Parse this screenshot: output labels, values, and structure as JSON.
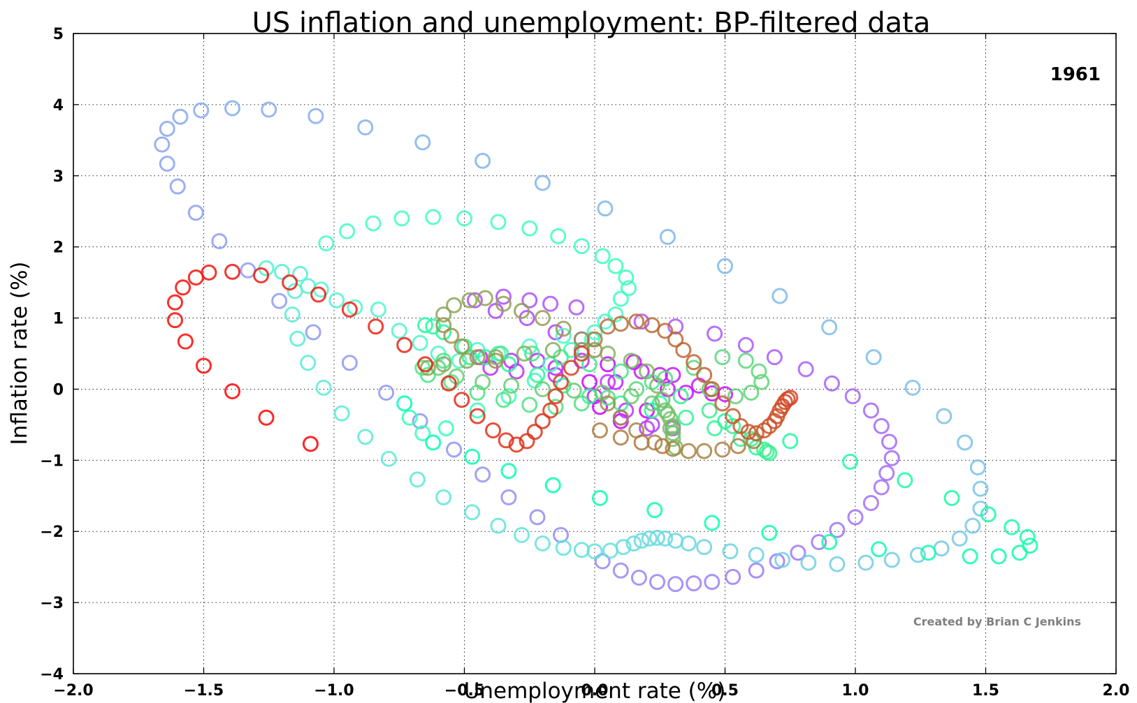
{
  "chart_data": {
    "type": "scatter",
    "title": "US inflation and unemployment: BP-filtered data",
    "xlabel": "Unemployment rate (%)",
    "ylabel": "Inflation rate (%)",
    "xlim": [
      -2.0,
      2.0
    ],
    "ylim": [
      -4,
      5
    ],
    "x_ticks": [
      -2.0,
      -1.5,
      -1.0,
      -0.5,
      0.0,
      0.5,
      1.0,
      1.5,
      2.0
    ],
    "x_tick_labels": [
      "−2.0",
      "−1.5",
      "−1.0",
      "−0.5",
      "0.0",
      "0.5",
      "1.0",
      "1.5",
      "2.0"
    ],
    "y_ticks": [
      -4,
      -3,
      -2,
      -1,
      0,
      1,
      2,
      3,
      4,
      5
    ],
    "y_tick_labels": [
      "−4",
      "−3",
      "−2",
      "−1",
      "0",
      "1",
      "2",
      "3",
      "4",
      "5"
    ],
    "grid": true,
    "marker": "open-circle",
    "colormap": "rainbow",
    "annotation_year": "1961",
    "credit": "Created by Brian C Jenkins",
    "points": [
      [
        0.2,
        -0.3
      ],
      [
        0.1,
        -0.45
      ],
      [
        0.02,
        -0.25
      ],
      [
        -0.02,
        0.1
      ],
      [
        0.05,
        0.35
      ],
      [
        0.15,
        0.38
      ],
      [
        0.25,
        0.2
      ],
      [
        0.28,
        0.0
      ],
      [
        0.35,
        -0.05
      ],
      [
        0.45,
        -0.06
      ],
      [
        0.5,
        -0.07
      ],
      [
        0.4,
        0.05
      ],
      [
        0.3,
        0.2
      ],
      [
        0.18,
        0.25
      ],
      [
        0.08,
        0.1
      ],
      [
        0.0,
        -0.1
      ],
      [
        -0.05,
        0.4
      ],
      [
        -0.15,
        0.3
      ],
      [
        -0.22,
        0.4
      ],
      [
        -0.32,
        0.4
      ],
      [
        -0.44,
        0.45
      ],
      [
        -0.4,
        0.3
      ],
      [
        -0.3,
        0.25
      ],
      [
        -0.15,
        0.2
      ],
      [
        -0.05,
        0.55
      ],
      [
        0.05,
        0.1
      ],
      [
        0.12,
        -0.3
      ],
      [
        0.22,
        -0.5
      ],
      [
        0.3,
        -0.55
      ],
      [
        0.2,
        -0.55
      ],
      [
        0.1,
        -0.4
      ],
      [
        -0.05,
        0.7
      ],
      [
        -0.15,
        0.8
      ],
      [
        -0.26,
        1.0
      ],
      [
        -0.38,
        1.1
      ],
      [
        -0.46,
        1.25
      ],
      [
        -0.35,
        1.3
      ],
      [
        -0.25,
        1.25
      ],
      [
        -0.17,
        1.2
      ],
      [
        -0.07,
        1.15
      ],
      [
        0.18,
        0.95
      ],
      [
        0.31,
        0.88
      ],
      [
        0.46,
        0.78
      ],
      [
        0.58,
        0.62
      ],
      [
        0.69,
        0.45
      ],
      [
        0.81,
        0.28
      ],
      [
        0.91,
        0.08
      ],
      [
        0.99,
        -0.1
      ],
      [
        1.06,
        -0.3
      ],
      [
        1.1,
        -0.52
      ],
      [
        1.13,
        -0.74
      ],
      [
        1.14,
        -0.97
      ],
      [
        1.12,
        -1.18
      ],
      [
        1.1,
        -1.38
      ],
      [
        1.06,
        -1.6
      ],
      [
        1.0,
        -1.8
      ],
      [
        0.93,
        -1.98
      ],
      [
        0.86,
        -2.15
      ],
      [
        0.78,
        -2.3
      ],
      [
        0.7,
        -2.42
      ],
      [
        0.62,
        -2.55
      ],
      [
        0.53,
        -2.64
      ],
      [
        0.45,
        -2.71
      ],
      [
        0.38,
        -2.73
      ],
      [
        0.31,
        -2.74
      ],
      [
        0.24,
        -2.71
      ],
      [
        0.17,
        -2.65
      ],
      [
        0.1,
        -2.55
      ],
      [
        0.03,
        -2.42
      ],
      [
        -0.13,
        -2.05
      ],
      [
        -0.22,
        -1.8
      ],
      [
        -0.33,
        -1.52
      ],
      [
        -0.43,
        -1.2
      ],
      [
        -0.54,
        -0.85
      ],
      [
        -0.67,
        -0.45
      ],
      [
        -0.8,
        -0.05
      ],
      [
        -0.94,
        0.37
      ],
      [
        -1.08,
        0.8
      ],
      [
        -1.21,
        1.24
      ],
      [
        -1.33,
        1.67
      ],
      [
        -1.44,
        2.08
      ],
      [
        -1.53,
        2.48
      ],
      [
        -1.6,
        2.85
      ],
      [
        -1.64,
        3.17
      ],
      [
        -1.66,
        3.44
      ],
      [
        -1.64,
        3.66
      ],
      [
        -1.59,
        3.83
      ],
      [
        -1.51,
        3.92
      ],
      [
        -1.39,
        3.95
      ],
      [
        -1.25,
        3.93
      ],
      [
        -1.07,
        3.84
      ],
      [
        -0.88,
        3.68
      ],
      [
        -0.66,
        3.47
      ],
      [
        -0.43,
        3.21
      ],
      [
        -0.2,
        2.9
      ],
      [
        0.04,
        2.54
      ],
      [
        0.28,
        2.14
      ],
      [
        0.5,
        1.73
      ],
      [
        0.71,
        1.31
      ],
      [
        0.9,
        0.87
      ],
      [
        1.07,
        0.45
      ],
      [
        1.22,
        0.02
      ],
      [
        1.34,
        -0.38
      ],
      [
        1.42,
        -0.75
      ],
      [
        1.47,
        -1.1
      ],
      [
        1.48,
        -1.4
      ],
      [
        1.48,
        -1.68
      ],
      [
        1.45,
        -1.92
      ],
      [
        1.4,
        -2.1
      ],
      [
        1.33,
        -2.24
      ],
      [
        1.24,
        -2.33
      ],
      [
        1.14,
        -2.4
      ],
      [
        1.04,
        -2.44
      ],
      [
        0.93,
        -2.46
      ],
      [
        0.82,
        -2.44
      ],
      [
        0.72,
        -2.4
      ],
      [
        0.62,
        -2.33
      ],
      [
        0.52,
        -2.28
      ],
      [
        0.42,
        -2.22
      ],
      [
        0.36,
        -2.17
      ],
      [
        0.31,
        -2.13
      ],
      [
        0.27,
        -2.1
      ],
      [
        0.24,
        -2.09
      ],
      [
        0.21,
        -2.1
      ],
      [
        0.18,
        -2.13
      ],
      [
        0.15,
        -2.17
      ],
      [
        0.11,
        -2.22
      ],
      [
        0.06,
        -2.27
      ],
      [
        0.0,
        -2.28
      ],
      [
        -0.05,
        -2.26
      ],
      [
        -0.12,
        -2.23
      ],
      [
        -0.2,
        -2.17
      ],
      [
        -0.28,
        -2.05
      ],
      [
        -0.37,
        -1.92
      ],
      [
        -0.47,
        -1.73
      ],
      [
        -0.58,
        -1.52
      ],
      [
        -0.68,
        -1.27
      ],
      [
        -0.79,
        -0.98
      ],
      [
        -0.88,
        -0.67
      ],
      [
        -0.97,
        -0.34
      ],
      [
        -1.04,
        0.02
      ],
      [
        -1.1,
        0.37
      ],
      [
        -1.14,
        0.71
      ],
      [
        -1.16,
        1.05
      ],
      [
        -1.15,
        1.38
      ],
      [
        -1.13,
        1.62
      ],
      [
        -1.2,
        1.65
      ],
      [
        -1.26,
        1.7
      ],
      [
        -0.99,
        1.25
      ],
      [
        -1.1,
        1.45
      ],
      [
        -1.05,
        1.4
      ],
      [
        -0.92,
        1.15
      ],
      [
        -0.83,
        1.12
      ],
      [
        -0.75,
        0.82
      ],
      [
        -0.67,
        0.65
      ],
      [
        -0.6,
        0.5
      ],
      [
        -0.52,
        0.4
      ],
      [
        -0.45,
        0.55
      ],
      [
        -0.37,
        0.5
      ],
      [
        -0.25,
        0.6
      ],
      [
        -0.12,
        0.75
      ],
      [
        0.0,
        0.8
      ],
      [
        0.04,
        0.95
      ],
      [
        0.08,
        1.05
      ],
      [
        -1.03,
        2.05
      ],
      [
        -0.95,
        2.22
      ],
      [
        -0.85,
        2.33
      ],
      [
        -0.74,
        2.4
      ],
      [
        -0.62,
        2.42
      ],
      [
        -0.5,
        2.4
      ],
      [
        -0.37,
        2.35
      ],
      [
        -0.25,
        2.26
      ],
      [
        -0.14,
        2.15
      ],
      [
        -0.05,
        2.01
      ],
      [
        0.03,
        1.87
      ],
      [
        0.08,
        1.73
      ],
      [
        0.12,
        1.57
      ],
      [
        0.13,
        1.42
      ],
      [
        0.1,
        1.27
      ],
      [
        -0.01,
        0.7
      ],
      [
        -0.09,
        0.55
      ],
      [
        -0.17,
        0.35
      ],
      [
        -0.23,
        0.12
      ],
      [
        -0.33,
        -0.1
      ],
      [
        -0.45,
        -0.3
      ],
      [
        -0.57,
        -0.55
      ],
      [
        -0.66,
        -0.62
      ],
      [
        -0.71,
        -0.4
      ],
      [
        -0.73,
        -0.2
      ],
      [
        -0.62,
        -0.75
      ],
      [
        -0.47,
        -0.95
      ],
      [
        -0.33,
        -1.15
      ],
      [
        -0.16,
        -1.35
      ],
      [
        0.02,
        -1.53
      ],
      [
        0.23,
        -1.7
      ],
      [
        0.45,
        -1.88
      ],
      [
        0.67,
        -2.02
      ],
      [
        0.9,
        -2.15
      ],
      [
        1.09,
        -2.25
      ],
      [
        1.28,
        -2.3
      ],
      [
        1.44,
        -2.35
      ],
      [
        1.55,
        -2.35
      ],
      [
        1.63,
        -2.3
      ],
      [
        1.67,
        -2.2
      ],
      [
        1.66,
        -2.08
      ],
      [
        1.6,
        -1.94
      ],
      [
        1.51,
        -1.76
      ],
      [
        1.37,
        -1.53
      ],
      [
        1.19,
        -1.28
      ],
      [
        0.98,
        -1.02
      ],
      [
        0.75,
        -0.73
      ],
      [
        0.5,
        -0.45
      ],
      [
        0.25,
        -0.2
      ],
      [
        -0.65,
        0.9
      ],
      [
        -0.62,
        0.88
      ],
      [
        -0.58,
        0.8
      ],
      [
        -0.5,
        0.6
      ],
      [
        -0.42,
        0.45
      ],
      [
        -0.33,
        0.35
      ],
      [
        -0.22,
        0.2
      ],
      [
        -0.12,
        0.05
      ],
      [
        -0.02,
        -0.1
      ],
      [
        0.1,
        -0.2
      ],
      [
        0.22,
        -0.3
      ],
      [
        0.35,
        -0.4
      ],
      [
        0.46,
        -0.55
      ],
      [
        0.56,
        -0.7
      ],
      [
        0.62,
        -0.82
      ],
      [
        0.66,
        -0.88
      ],
      [
        0.67,
        -0.9
      ],
      [
        0.65,
        -0.85
      ],
      [
        0.6,
        -0.7
      ],
      [
        0.53,
        -0.52
      ],
      [
        0.44,
        -0.3
      ],
      [
        0.33,
        -0.1
      ],
      [
        0.22,
        0.1
      ],
      [
        0.1,
        0.25
      ],
      [
        -0.02,
        0.35
      ],
      [
        -0.13,
        0.45
      ],
      [
        -0.24,
        0.5
      ],
      [
        -0.36,
        0.5
      ],
      [
        -0.48,
        0.45
      ],
      [
        -0.58,
        0.4
      ],
      [
        -0.66,
        0.3
      ],
      [
        -0.64,
        0.2
      ],
      [
        -0.55,
        0.1
      ],
      [
        -0.45,
        -0.05
      ],
      [
        -0.35,
        -0.15
      ],
      [
        -0.25,
        -0.22
      ],
      [
        -0.15,
        -0.25
      ],
      [
        -0.05,
        -0.2
      ],
      [
        0.05,
        -0.12
      ],
      [
        0.16,
        0.0
      ],
      [
        0.27,
        0.15
      ],
      [
        0.38,
        0.3
      ],
      [
        0.49,
        0.45
      ],
      [
        0.58,
        0.4
      ],
      [
        0.63,
        0.25
      ],
      [
        0.64,
        0.1
      ],
      [
        0.6,
        -0.05
      ],
      [
        0.54,
        -0.1
      ],
      [
        0.44,
        0.0
      ],
      [
        -0.6,
        0.3
      ],
      [
        -0.53,
        0.18
      ],
      [
        -0.43,
        0.1
      ],
      [
        -0.32,
        0.05
      ],
      [
        -0.2,
        0.0
      ],
      [
        -0.08,
        -0.02
      ],
      [
        0.03,
        -0.05
      ],
      [
        0.14,
        -0.1
      ],
      [
        0.22,
        -0.2
      ],
      [
        0.27,
        -0.3
      ],
      [
        0.29,
        -0.42
      ],
      [
        0.3,
        -0.52
      ],
      [
        0.3,
        -0.62
      ],
      [
        0.3,
        -0.7
      ],
      [
        0.31,
        -0.82
      ],
      [
        0.29,
        -0.55
      ],
      [
        0.28,
        -0.35
      ],
      [
        0.26,
        -0.15
      ],
      [
        0.24,
        0.05
      ],
      [
        0.2,
        0.25
      ],
      [
        0.14,
        0.4
      ],
      [
        0.05,
        0.5
      ],
      [
        -0.05,
        0.55
      ],
      [
        -0.16,
        0.55
      ],
      [
        -0.27,
        0.5
      ],
      [
        -0.38,
        0.45
      ],
      [
        -0.49,
        0.4
      ],
      [
        -0.58,
        0.35
      ],
      [
        -0.64,
        0.3
      ],
      [
        -0.58,
        1.05
      ],
      [
        -0.54,
        1.18
      ],
      [
        -0.48,
        1.25
      ],
      [
        -0.42,
        1.28
      ],
      [
        -0.35,
        1.2
      ],
      [
        -0.28,
        1.1
      ],
      [
        -0.2,
        1.0
      ],
      [
        -0.12,
        0.85
      ],
      [
        -0.05,
        0.7
      ],
      [
        0.0,
        0.55
      ],
      [
        -0.58,
        0.9
      ],
      [
        -0.55,
        0.75
      ],
      [
        -0.51,
        0.6
      ],
      [
        -0.45,
        0.45
      ],
      [
        -0.38,
        0.4
      ],
      [
        0.05,
        -0.2
      ],
      [
        0.1,
        -0.4
      ],
      [
        0.16,
        -0.58
      ],
      [
        0.23,
        -0.75
      ],
      [
        0.3,
        -0.84
      ],
      [
        0.36,
        -0.87
      ],
      [
        0.42,
        -0.87
      ],
      [
        0.49,
        -0.85
      ],
      [
        0.55,
        -0.8
      ],
      [
        0.61,
        -0.73
      ],
      [
        0.02,
        -0.58
      ],
      [
        0.1,
        -0.68
      ],
      [
        0.18,
        -0.75
      ],
      [
        0.26,
        -0.8
      ],
      [
        0.0,
        0.7
      ],
      [
        0.05,
        0.88
      ],
      [
        0.1,
        0.92
      ],
      [
        0.16,
        0.95
      ],
      [
        0.22,
        0.9
      ],
      [
        0.27,
        0.82
      ],
      [
        0.31,
        0.7
      ],
      [
        0.34,
        0.55
      ],
      [
        0.38,
        0.38
      ],
      [
        0.42,
        0.2
      ],
      [
        0.45,
        0.0
      ],
      [
        0.49,
        -0.2
      ],
      [
        0.53,
        -0.38
      ],
      [
        0.56,
        -0.52
      ],
      [
        0.59,
        -0.6
      ],
      [
        0.62,
        -0.62
      ],
      [
        0.65,
        -0.58
      ],
      [
        0.67,
        -0.52
      ],
      [
        0.69,
        -0.45
      ],
      [
        0.7,
        -0.38
      ],
      [
        0.71,
        -0.3
      ],
      [
        0.72,
        -0.24
      ],
      [
        0.73,
        -0.18
      ],
      [
        0.74,
        -0.14
      ],
      [
        0.75,
        -0.12
      ],
      [
        -0.05,
        0.5
      ],
      [
        -0.09,
        0.3
      ],
      [
        -0.13,
        0.1
      ],
      [
        -0.15,
        -0.1
      ],
      [
        -0.17,
        -0.3
      ],
      [
        -0.2,
        -0.45
      ],
      [
        -0.23,
        -0.6
      ],
      [
        -0.26,
        -0.73
      ],
      [
        -0.3,
        -0.78
      ],
      [
        -0.34,
        -0.72
      ],
      [
        -0.39,
        -0.58
      ],
      [
        -0.45,
        -0.38
      ],
      [
        -0.51,
        -0.15
      ],
      [
        -0.56,
        0.08
      ],
      [
        -0.65,
        0.35
      ],
      [
        -0.73,
        0.62
      ],
      [
        -0.84,
        0.88
      ],
      [
        -0.94,
        1.12
      ],
      [
        -1.06,
        1.33
      ],
      [
        -1.17,
        1.5
      ],
      [
        -1.28,
        1.6
      ],
      [
        -1.39,
        1.65
      ],
      [
        -1.48,
        1.64
      ],
      [
        -1.53,
        1.57
      ],
      [
        -1.58,
        1.43
      ],
      [
        -1.61,
        1.22
      ],
      [
        -1.61,
        0.97
      ],
      [
        -1.57,
        0.67
      ],
      [
        -1.5,
        0.33
      ],
      [
        -1.39,
        -0.03
      ],
      [
        -1.26,
        -0.4
      ],
      [
        -1.09,
        -0.77
      ]
    ]
  }
}
